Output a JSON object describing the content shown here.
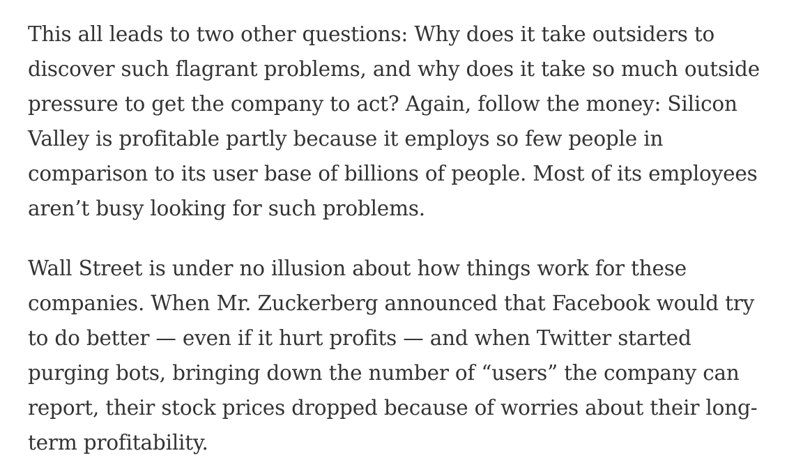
{
  "article": {
    "paragraphs": [
      {
        "lines": [
          "This all leads to two other questions: Why does it take outsiders to",
          "discover such flagrant problems, and why does it take so much outside",
          "pressure to get the company to act? Again, follow the money: Silicon",
          "Valley is profitable partly because it employs so few people in",
          "comparison to its user base of billions of people. Most of its employees",
          "aren’t busy looking for such problems."
        ]
      },
      {
        "lines": [
          "Wall Street is under no illusion about how things work for these",
          "companies. When Mr. Zuckerberg announced that Facebook would try",
          "to do better — even if it hurt profits — and when Twitter started",
          "purging bots, bringing down the number of “users” the company can",
          "report, their stock prices dropped because of worries about their long-",
          "term profitability."
        ]
      }
    ]
  }
}
